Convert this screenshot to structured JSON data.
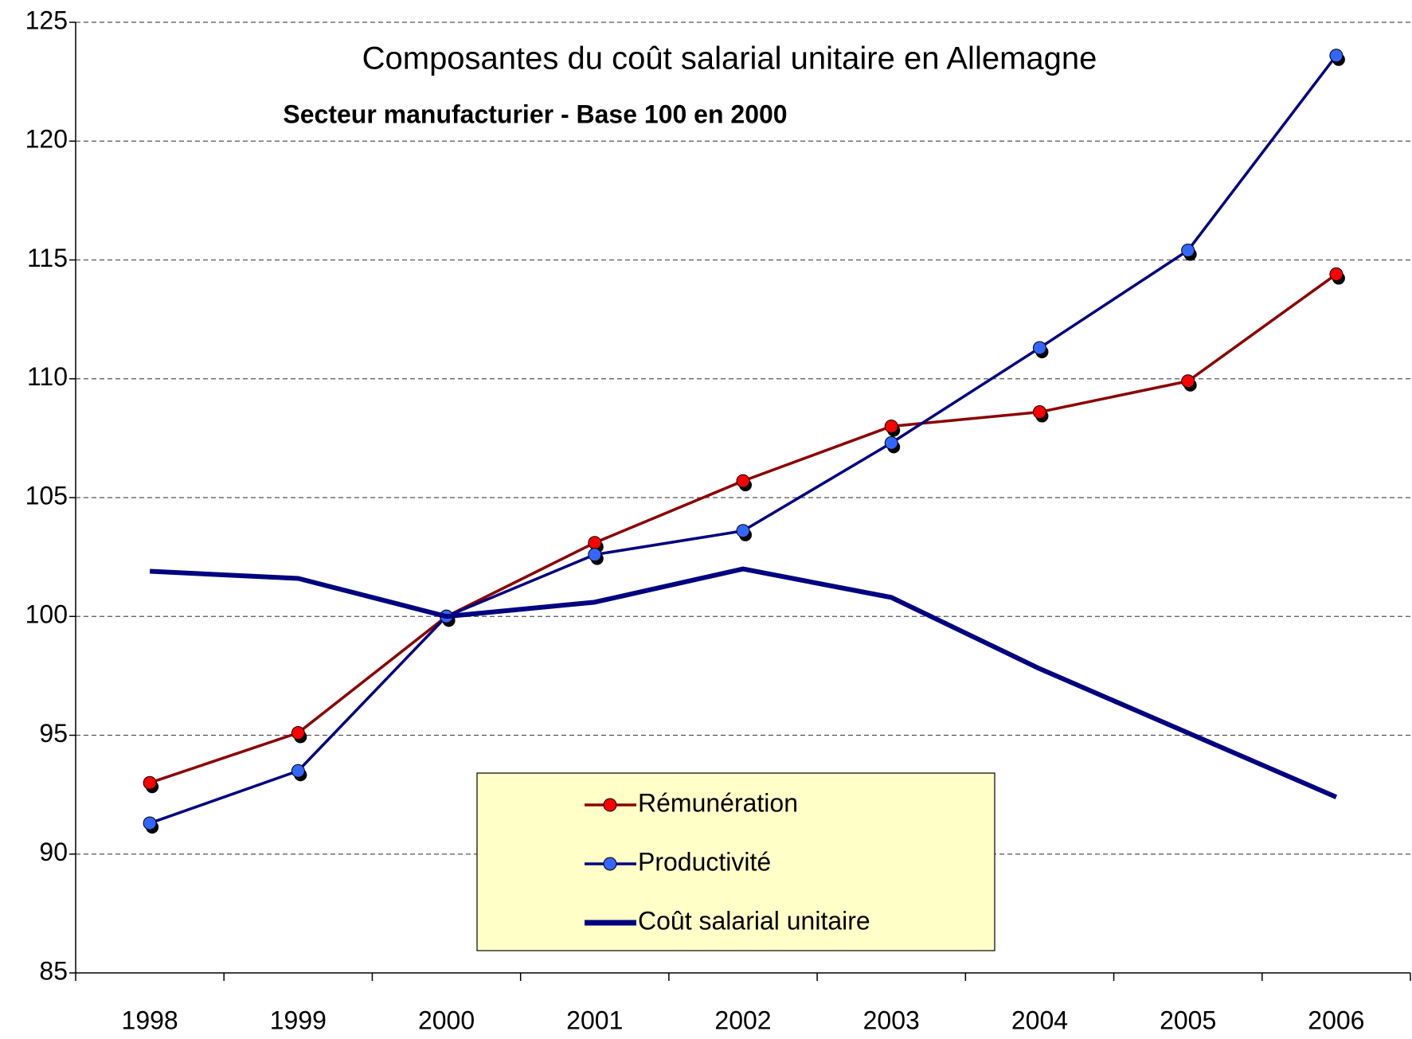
{
  "chart_data": {
    "type": "line",
    "title": "Composantes du coût salarial unitaire en Allemagne",
    "subtitle": "Secteur manufacturier - Base 100 en 2000",
    "categories": [
      "1998",
      "1999",
      "2000",
      "2001",
      "2002",
      "2003",
      "2004",
      "2005",
      "2006"
    ],
    "series": [
      {
        "name": "Rémunération",
        "color": "#8b0000",
        "marker_color": "#ff0000",
        "markers": true,
        "values": [
          93.0,
          95.1,
          100,
          103.1,
          105.7,
          108.0,
          108.6,
          109.9,
          114.4
        ]
      },
      {
        "name": "Productivité",
        "color": "#000080",
        "marker_color": "#3366ff",
        "markers": true,
        "values": [
          91.3,
          93.5,
          100,
          102.6,
          103.6,
          107.3,
          111.3,
          115.4,
          123.6
        ]
      },
      {
        "name": "Coût salarial unitaire",
        "color": "#000080",
        "markers": false,
        "values": [
          101.9,
          101.6,
          100,
          100.6,
          102.0,
          100.8,
          97.8,
          95.1,
          92.4
        ]
      }
    ],
    "ylim": [
      85,
      125
    ],
    "yticks": [
      85,
      90,
      95,
      100,
      105,
      110,
      115,
      120,
      125
    ],
    "grid": true,
    "legend": "bottom-center"
  }
}
